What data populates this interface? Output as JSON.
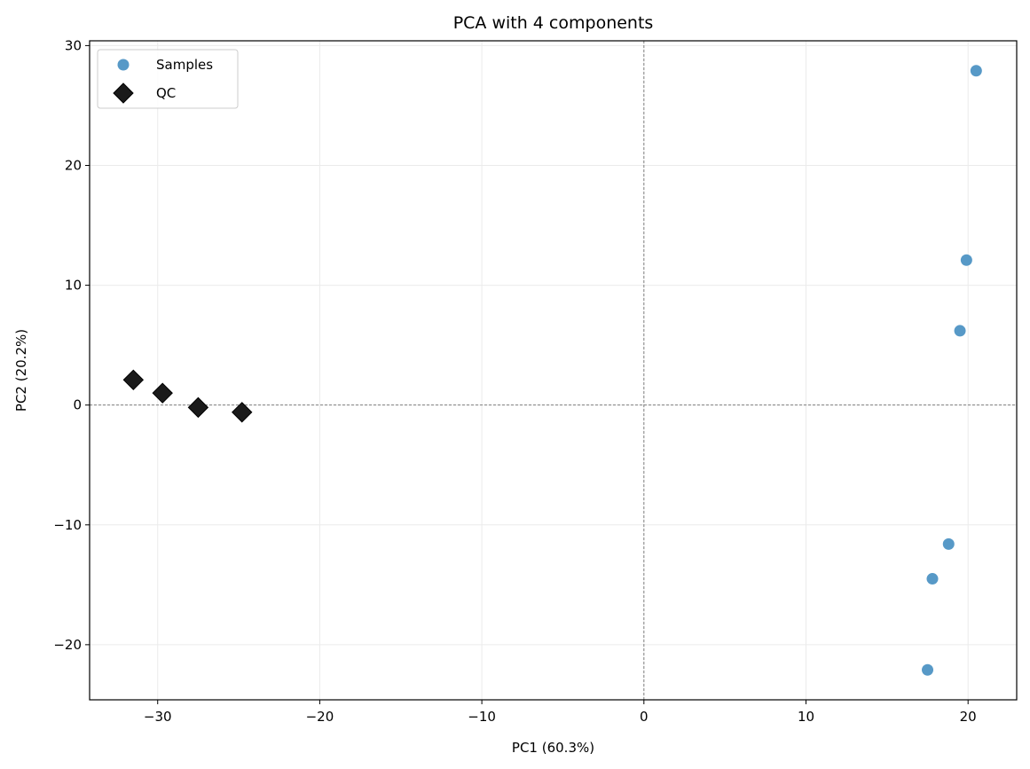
{
  "chart_data": {
    "type": "scatter",
    "title": "PCA with 4 components",
    "xlabel": "PC1 (60.3%)",
    "ylabel": "PC2 (20.2%)",
    "xlim": [
      -34.2,
      23.0
    ],
    "ylim": [
      -24.6,
      30.4
    ],
    "xticks": [
      -30,
      -20,
      -10,
      0,
      10,
      20
    ],
    "yticks": [
      -20,
      -10,
      0,
      10,
      20,
      30
    ],
    "grid": true,
    "reference_lines": {
      "x": 0,
      "y": 0
    },
    "legend": {
      "position": "top-left",
      "entries": [
        "Samples",
        "QC"
      ]
    },
    "series": [
      {
        "name": "Samples",
        "marker": "circle",
        "color": "#5799c7",
        "points": [
          {
            "x": 20.5,
            "y": 27.9
          },
          {
            "x": 19.9,
            "y": 12.1
          },
          {
            "x": 19.5,
            "y": 6.2
          },
          {
            "x": 18.8,
            "y": -11.6
          },
          {
            "x": 17.8,
            "y": -14.5
          },
          {
            "x": 17.5,
            "y": -22.1
          }
        ]
      },
      {
        "name": "QC",
        "marker": "diamond",
        "color": "#1a1a1a",
        "points": [
          {
            "x": -31.5,
            "y": 2.1
          },
          {
            "x": -29.7,
            "y": 1.0
          },
          {
            "x": -27.5,
            "y": -0.2
          },
          {
            "x": -24.8,
            "y": -0.6
          }
        ]
      }
    ]
  }
}
